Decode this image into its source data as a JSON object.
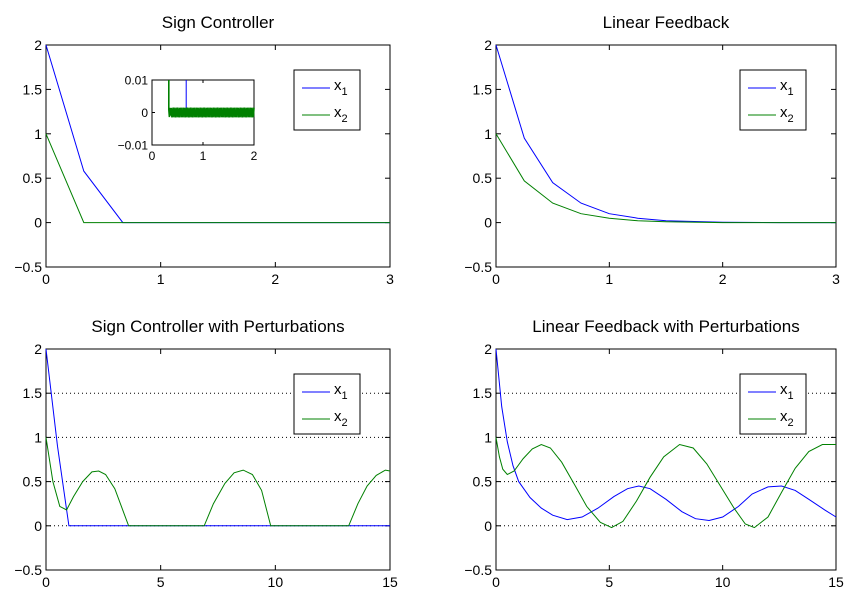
{
  "chart_data": [
    {
      "type": "line",
      "title": "Sign Controller",
      "xlabel": "",
      "ylabel": "",
      "xlim": [
        0,
        3
      ],
      "ylim": [
        -0.5,
        2
      ],
      "xticks": [
        0,
        1,
        2,
        3
      ],
      "xtick_labels": [
        "0",
        "1",
        "2",
        "3"
      ],
      "yticks": [
        -0.5,
        0,
        0.5,
        1,
        1.5,
        2
      ],
      "ytick_labels": [
        "−0.5",
        "0",
        "0.5",
        "1",
        "1.5",
        "2"
      ],
      "grid": false,
      "legend": {
        "placement": "top-right",
        "entries": [
          "x1",
          "x2"
        ]
      },
      "series": [
        {
          "name": "x1",
          "color": "#0000ff",
          "x": [
            0,
            0.33,
            0.67,
            3
          ],
          "y": [
            2,
            0.58,
            0,
            0
          ]
        },
        {
          "name": "x2",
          "color": "#008000",
          "x": [
            0,
            0.33,
            3
          ],
          "y": [
            1,
            0,
            0
          ]
        }
      ],
      "inset": {
        "placement": "top-center",
        "xlim": [
          0,
          2
        ],
        "ylim": [
          -0.01,
          0.01
        ],
        "xticks": [
          0,
          1,
          2
        ],
        "xtick_labels": [
          "0",
          "1",
          "2"
        ],
        "yticks": [
          -0.01,
          0,
          0.01
        ],
        "ytick_labels": [
          "−0.01",
          "0",
          "0.01"
        ],
        "series": [
          {
            "name": "x1",
            "color": "#0000ff",
            "x": [
              0.67,
              0.67,
              2
            ],
            "y": [
              0.01,
              0,
              0
            ]
          },
          {
            "name": "x2",
            "color": "#008000",
            "chatter_start": 0.33,
            "chatter_end": 2,
            "chatter_amplitude": 0.0015
          }
        ]
      }
    },
    {
      "type": "line",
      "title": "Linear Feedback",
      "xlabel": "",
      "ylabel": "",
      "xlim": [
        0,
        3
      ],
      "ylim": [
        -0.5,
        2
      ],
      "xticks": [
        0,
        1,
        2,
        3
      ],
      "xtick_labels": [
        "0",
        "1",
        "2",
        "3"
      ],
      "yticks": [
        -0.5,
        0,
        0.5,
        1,
        1.5,
        2
      ],
      "ytick_labels": [
        "−0.5",
        "0",
        "0.5",
        "1",
        "1.5",
        "2"
      ],
      "grid": false,
      "legend": {
        "placement": "top-right",
        "entries": [
          "x1",
          "x2"
        ]
      },
      "series": [
        {
          "name": "x1",
          "color": "#0000ff",
          "x": [
            0,
            0.25,
            0.5,
            0.75,
            1,
            1.25,
            1.5,
            2,
            2.5,
            3
          ],
          "y": [
            2,
            0.95,
            0.45,
            0.22,
            0.1,
            0.05,
            0.02,
            0.005,
            0,
            0
          ]
        },
        {
          "name": "x2",
          "color": "#008000",
          "x": [
            0,
            0.25,
            0.5,
            0.75,
            1,
            1.25,
            1.5,
            2,
            2.5,
            3
          ],
          "y": [
            1,
            0.47,
            0.22,
            0.1,
            0.05,
            0.02,
            0.01,
            0,
            0,
            0
          ]
        }
      ]
    },
    {
      "type": "line",
      "title": "Sign Controller with Perturbations",
      "xlabel": "",
      "ylabel": "",
      "xlim": [
        0,
        15
      ],
      "ylim": [
        -0.5,
        2
      ],
      "xticks": [
        0,
        5,
        10,
        15
      ],
      "xtick_labels": [
        "0",
        "5",
        "10",
        "15"
      ],
      "yticks": [
        -0.5,
        0,
        0.5,
        1,
        1.5,
        2
      ],
      "ytick_labels": [
        "−0.5",
        "0",
        "0.5",
        "1",
        "1.5",
        "2"
      ],
      "grid": "horizontal-dotted",
      "legend": {
        "placement": "top-right",
        "entries": [
          "x1",
          "x2"
        ]
      },
      "series": [
        {
          "name": "x1",
          "color": "#0000ff",
          "x": [
            0,
            0.5,
            1.0,
            15
          ],
          "y": [
            2,
            0.9,
            0,
            0
          ]
        },
        {
          "name": "x2",
          "color": "#008000",
          "x": [
            0,
            0.3,
            0.6,
            0.9,
            1.2,
            1.6,
            2.0,
            2.3,
            2.6,
            3.0,
            3.4,
            3.6,
            6.9,
            7.3,
            7.8,
            8.2,
            8.6,
            9.0,
            9.4,
            9.8,
            13.2,
            13.6,
            14.0,
            14.4,
            14.8,
            15
          ],
          "y": [
            1,
            0.5,
            0.22,
            0.18,
            0.33,
            0.5,
            0.61,
            0.62,
            0.58,
            0.42,
            0.14,
            0,
            0,
            0.25,
            0.48,
            0.6,
            0.63,
            0.58,
            0.4,
            0,
            0,
            0.25,
            0.45,
            0.57,
            0.63,
            0.62
          ]
        }
      ]
    },
    {
      "type": "line",
      "title": "Linear Feedback with Perturbations",
      "xlabel": "",
      "ylabel": "",
      "xlim": [
        0,
        15
      ],
      "ylim": [
        -0.5,
        2
      ],
      "xticks": [
        0,
        5,
        10,
        15
      ],
      "xtick_labels": [
        "0",
        "5",
        "10",
        "15"
      ],
      "yticks": [
        -0.5,
        0,
        0.5,
        1,
        1.5,
        2
      ],
      "ytick_labels": [
        "−0.5",
        "0",
        "0.5",
        "1",
        "1.5",
        "2"
      ],
      "grid": "horizontal-dotted",
      "legend": {
        "placement": "top-right",
        "entries": [
          "x1",
          "x2"
        ]
      },
      "series": [
        {
          "name": "x1",
          "color": "#0000ff",
          "x": [
            0,
            0.25,
            0.5,
            0.75,
            1.0,
            1.5,
            2.0,
            2.5,
            3.14,
            3.8,
            4.5,
            5.2,
            5.8,
            6.3,
            6.8,
            7.5,
            8.2,
            8.8,
            9.4,
            10.0,
            10.7,
            11.3,
            12.0,
            12.6,
            13.2,
            13.8,
            14.5,
            15
          ],
          "y": [
            2,
            1.35,
            0.95,
            0.68,
            0.5,
            0.32,
            0.2,
            0.12,
            0.07,
            0.1,
            0.2,
            0.33,
            0.42,
            0.45,
            0.42,
            0.3,
            0.16,
            0.08,
            0.06,
            0.1,
            0.22,
            0.36,
            0.44,
            0.45,
            0.4,
            0.3,
            0.18,
            0.1
          ]
        },
        {
          "name": "x2",
          "color": "#008000",
          "x": [
            0,
            0.15,
            0.3,
            0.5,
            0.8,
            1.2,
            1.6,
            2.0,
            2.4,
            2.9,
            3.5,
            4.0,
            4.6,
            5.1,
            5.6,
            6.2,
            6.8,
            7.4,
            8.1,
            8.7,
            9.3,
            9.9,
            10.5,
            11.0,
            11.4,
            12.0,
            12.6,
            13.2,
            13.8,
            14.4,
            15
          ],
          "y": [
            1,
            0.78,
            0.64,
            0.58,
            0.62,
            0.76,
            0.87,
            0.92,
            0.88,
            0.72,
            0.45,
            0.22,
            0.04,
            -0.02,
            0.05,
            0.28,
            0.55,
            0.78,
            0.92,
            0.88,
            0.7,
            0.45,
            0.2,
            0.02,
            -0.02,
            0.1,
            0.38,
            0.65,
            0.84,
            0.92,
            0.92
          ]
        }
      ]
    }
  ]
}
